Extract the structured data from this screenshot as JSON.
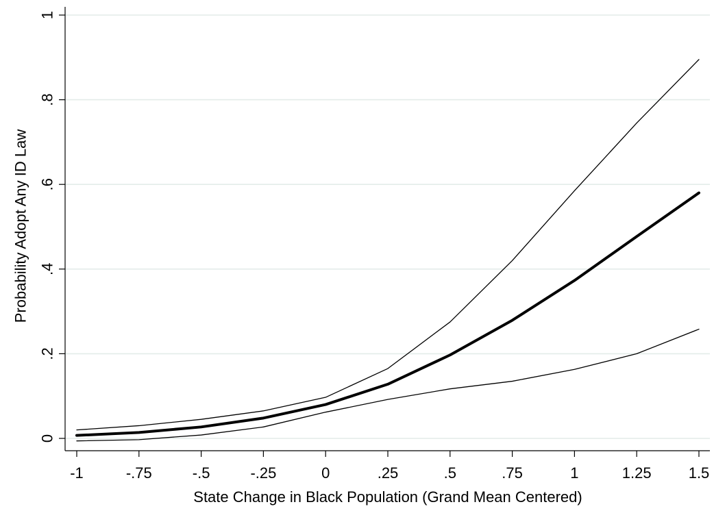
{
  "chart_data": {
    "type": "line",
    "title": "",
    "xlabel": "State Change in Black Population (Grand Mean Centered)",
    "ylabel": "Probability Adopt Any ID Law",
    "xlim": [
      -1,
      1.5
    ],
    "ylim": [
      0,
      1
    ],
    "x_ticks": [
      -1,
      -0.75,
      -0.5,
      -0.25,
      0,
      0.25,
      0.5,
      0.75,
      1,
      1.25,
      1.5
    ],
    "x_tick_labels": [
      "-1",
      "-.75",
      "-.5",
      "-.25",
      "0",
      ".25",
      ".5",
      ".75",
      "1",
      "1.25",
      "1.5"
    ],
    "y_ticks": [
      0,
      0.2,
      0.4,
      0.6,
      0.8,
      1
    ],
    "y_tick_labels": [
      "0",
      ".2",
      ".4",
      ".6",
      ".8",
      "1"
    ],
    "grid": "horizontal",
    "gridline_color": "#e3ece9",
    "x": [
      -1,
      -0.75,
      -0.5,
      -0.25,
      0,
      0.25,
      0.5,
      0.75,
      1,
      1.25,
      1.5
    ],
    "series": [
      {
        "role": "upper-bound",
        "values": [
          0.02,
          0.03,
          0.045,
          0.065,
          0.097,
          0.165,
          0.275,
          0.42,
          0.585,
          0.745,
          0.895
        ],
        "stroke": "#000000",
        "weight": "thin"
      },
      {
        "role": "estimate",
        "values": [
          0.007,
          0.014,
          0.027,
          0.048,
          0.08,
          0.128,
          0.197,
          0.279,
          0.373,
          0.477,
          0.58
        ],
        "stroke": "#000000",
        "weight": "thick"
      },
      {
        "role": "lower-bound",
        "values": [
          -0.006,
          -0.003,
          0.008,
          0.027,
          0.062,
          0.092,
          0.117,
          0.135,
          0.163,
          0.2,
          0.258
        ],
        "stroke": "#000000",
        "weight": "thin"
      }
    ]
  }
}
